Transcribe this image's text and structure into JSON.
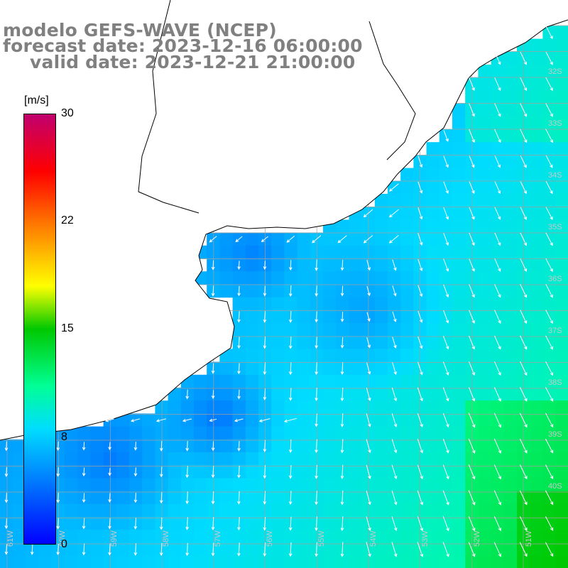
{
  "title": {
    "line1": "modelo GEFS-WAVE (NCEP)",
    "line2": "forecast date: 2023-12-16 06:00:00",
    "line3": "valid date: 2023-12-21 21:00:00"
  },
  "colorbar": {
    "unit": "[m/s]",
    "ticks": [
      "30",
      "22",
      "15",
      "8",
      "0"
    ],
    "range": [
      0,
      30
    ],
    "colors": [
      "#0000ff",
      "#00c8ff",
      "#00ff80",
      "#00cc00",
      "#ffff00",
      "#ff8000",
      "#ff0000",
      "#c0006e"
    ]
  },
  "map": {
    "lat_labels": [
      "32S",
      "33S",
      "34S",
      "35S",
      "36S",
      "37S",
      "38S",
      "39S",
      "40S"
    ],
    "lon_labels": [
      "61W",
      "60W",
      "59W",
      "58W",
      "57W",
      "56W",
      "55W",
      "54W",
      "53W",
      "52W",
      "51W"
    ],
    "land_color": "#ffffff",
    "grid_color": "#a0a0a0",
    "coast_color": "#000000"
  },
  "chart_data": {
    "type": "heatmap",
    "variable": "wind speed and direction (vectors)",
    "unit": "m/s",
    "range": [
      0,
      30
    ],
    "lat_labels": [
      "32S",
      "33S",
      "34S",
      "35S",
      "36S",
      "37S",
      "38S",
      "39S",
      "40S"
    ],
    "lon_labels": [
      "61W",
      "60W",
      "59W",
      "58W",
      "57W",
      "56W",
      "55W",
      "54W",
      "53W",
      "52W",
      "51W"
    ]
  }
}
